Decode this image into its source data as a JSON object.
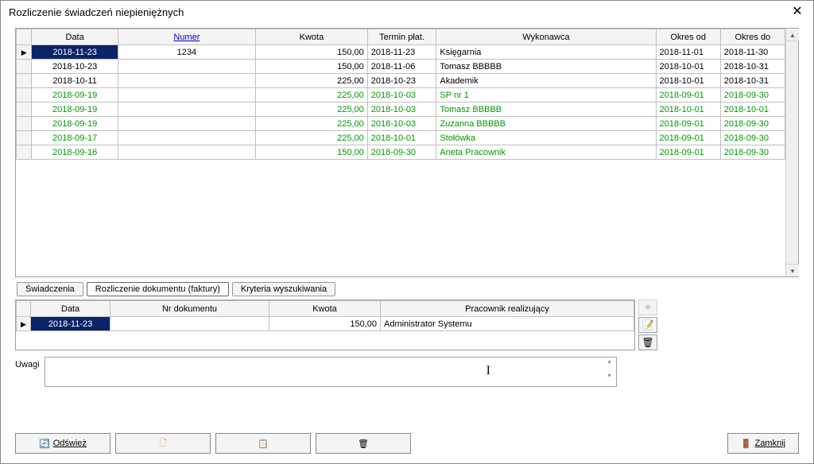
{
  "window": {
    "title": "Rozliczenie świadczeń niepieniężnych"
  },
  "mainTable": {
    "columns": {
      "data": "Data",
      "numer": "Numer",
      "kwota": "Kwota",
      "termin": "Termin płat.",
      "wykonawca": "Wykonawca",
      "okresOd": "Okres od",
      "okresDo": "Okres do"
    },
    "rows": [
      {
        "current": true,
        "sel": true,
        "grn": false,
        "data": "2018-11-23",
        "numer": "1234",
        "kwota": "150,00",
        "termin": "2018-11-23",
        "wykonawca": "Księgarnia",
        "okresOd": "2018-11-01",
        "okresDo": "2018-11-30"
      },
      {
        "current": false,
        "sel": false,
        "grn": false,
        "data": "2018-10-23",
        "numer": "",
        "kwota": "150,00",
        "termin": "2018-11-06",
        "wykonawca": "Tomasz BBBBB",
        "okresOd": "2018-10-01",
        "okresDo": "2018-10-31"
      },
      {
        "current": false,
        "sel": false,
        "grn": false,
        "data": "2018-10-11",
        "numer": "",
        "kwota": "225,00",
        "termin": "2018-10-23",
        "wykonawca": "Akademik",
        "okresOd": "2018-10-01",
        "okresDo": "2018-10-31"
      },
      {
        "current": false,
        "sel": false,
        "grn": true,
        "data": "2018-09-19",
        "numer": "",
        "kwota": "225,00",
        "termin": "2018-10-03",
        "wykonawca": "SP nr 1",
        "okresOd": "2018-09-01",
        "okresDo": "2018-09-30"
      },
      {
        "current": false,
        "sel": false,
        "grn": true,
        "data": "2018-09-19",
        "numer": "",
        "kwota": "225,00",
        "termin": "2018-10-03",
        "wykonawca": "Tomasz BBBBB",
        "okresOd": "2018-10-01",
        "okresDo": "2018-10-01"
      },
      {
        "current": false,
        "sel": false,
        "grn": true,
        "data": "2018-09-19",
        "numer": "",
        "kwota": "225,00",
        "termin": "2018-10-03",
        "wykonawca": "Zuzanna BBBBB",
        "okresOd": "2018-09-01",
        "okresDo": "2018-09-30"
      },
      {
        "current": false,
        "sel": false,
        "grn": true,
        "data": "2018-09-17",
        "numer": "",
        "kwota": "225,00",
        "termin": "2018-10-01",
        "wykonawca": "Stołówka",
        "okresOd": "2018-09-01",
        "okresDo": "2018-09-30"
      },
      {
        "current": false,
        "sel": false,
        "grn": true,
        "data": "2018-09-16",
        "numer": "",
        "kwota": "150,00",
        "termin": "2018-09-30",
        "wykonawca": "Aneta Pracownik",
        "okresOd": "2018-09-01",
        "okresDo": "2018-09-30"
      }
    ]
  },
  "tabs": {
    "t1": "Świadczenia",
    "t2": "Rozliczenie dokumentu (faktury)",
    "t3": "Kryteria wyszukiwania"
  },
  "detailTable": {
    "columns": {
      "data": "Data",
      "nrDok": "Nr dokumentu",
      "kwota": "Kwota",
      "pracownik": "Pracownik realizujący"
    },
    "rows": [
      {
        "current": true,
        "sel": true,
        "data": "2018-11-23",
        "nrDok": "",
        "kwota": "150,00",
        "pracownik": "Administrator Systemu"
      }
    ]
  },
  "uwagi": {
    "label": "Uwagi"
  },
  "buttons": {
    "refresh": "Odśwież",
    "close": "Zamknij"
  },
  "colors": {
    "selection": "#0a246a",
    "green": "#009900",
    "link": "#0000cc"
  }
}
